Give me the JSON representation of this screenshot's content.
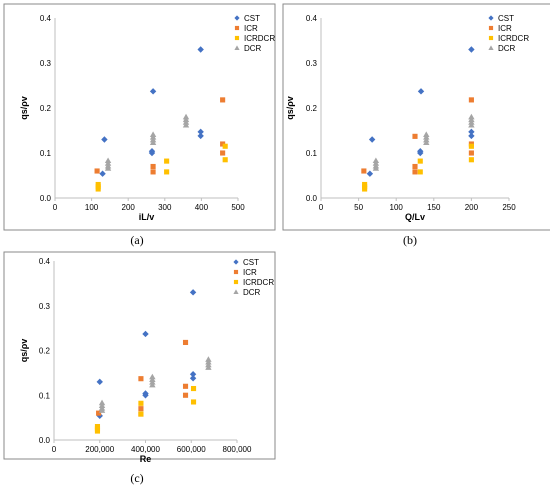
{
  "colors": {
    "CST": "#4472c4",
    "ICR": "#ed7d31",
    "ICRDCR": "#ffc000",
    "DCR": "#a5a5a5"
  },
  "chart_data": [
    {
      "panel": "a",
      "caption": "(a)",
      "type": "scatter",
      "xlabel": "iL/v",
      "ylabel": "qs/ρv",
      "xlim": [
        0,
        500
      ],
      "ylim": [
        0,
        0.4
      ],
      "xticks": [
        "0",
        "100",
        "200",
        "300",
        "400",
        "500"
      ],
      "yticks": [
        "0.0",
        "0.1",
        "0.2",
        "0.3",
        "0.4"
      ],
      "legend_position": "top-right",
      "series": [
        {
          "name": "CST",
          "marker": "diamond",
          "points": [
            [
              135,
              0.13
            ],
            [
              130,
              0.054
            ],
            [
              268,
              0.237
            ],
            [
              265,
              0.104
            ],
            [
              265,
              0.1
            ],
            [
              398,
              0.33
            ],
            [
              398,
              0.147
            ],
            [
              398,
              0.138
            ]
          ]
        },
        {
          "name": "ICR",
          "marker": "square",
          "points": [
            [
              115,
              0.06
            ],
            [
              268,
              0.07
            ],
            [
              268,
              0.058
            ],
            [
              458,
              0.218
            ],
            [
              458,
              0.12
            ],
            [
              458,
              0.1
            ]
          ]
        },
        {
          "name": "ICRDCR",
          "marker": "square",
          "points": [
            [
              118,
              0.03
            ],
            [
              118,
              0.025
            ],
            [
              118,
              0.02
            ],
            [
              305,
              0.082
            ],
            [
              305,
              0.058
            ],
            [
              465,
              0.115
            ],
            [
              465,
              0.085
            ]
          ]
        },
        {
          "name": "DCR",
          "marker": "triangle",
          "points": [
            [
              145,
              0.083
            ],
            [
              145,
              0.077
            ],
            [
              145,
              0.071
            ],
            [
              145,
              0.066
            ],
            [
              268,
              0.141
            ],
            [
              268,
              0.135
            ],
            [
              268,
              0.129
            ],
            [
              268,
              0.123
            ],
            [
              358,
              0.18
            ],
            [
              358,
              0.174
            ],
            [
              358,
              0.168
            ],
            [
              358,
              0.162
            ]
          ]
        }
      ]
    },
    {
      "panel": "b",
      "caption": "(b)",
      "type": "scatter",
      "xlabel": "Q/Lv",
      "ylabel": "qs/ρv",
      "xlim": [
        0,
        250
      ],
      "ylim": [
        0,
        0.4
      ],
      "xticks": [
        "0",
        "50",
        "100",
        "150",
        "200",
        "250"
      ],
      "yticks": [
        "0.0",
        "0.1",
        "0.2",
        "0.3",
        "0.4"
      ],
      "legend_position": "top-right",
      "series": [
        {
          "name": "CST",
          "marker": "diamond",
          "points": [
            [
              68,
              0.13
            ],
            [
              65,
              0.054
            ],
            [
              133,
              0.237
            ],
            [
              132,
              0.104
            ],
            [
              132,
              0.1
            ],
            [
              200,
              0.33
            ],
            [
              200,
              0.147
            ],
            [
              200,
              0.138
            ]
          ]
        },
        {
          "name": "ICR",
          "marker": "square",
          "points": [
            [
              57,
              0.06
            ],
            [
              125,
              0.137
            ],
            [
              125,
              0.07
            ],
            [
              125,
              0.058
            ],
            [
              200,
              0.218
            ],
            [
              200,
              0.12
            ],
            [
              200,
              0.1
            ]
          ]
        },
        {
          "name": "ICRDCR",
          "marker": "square",
          "points": [
            [
              58,
              0.03
            ],
            [
              58,
              0.025
            ],
            [
              58,
              0.02
            ],
            [
              132,
              0.082
            ],
            [
              132,
              0.058
            ],
            [
              200,
              0.115
            ],
            [
              200,
              0.085
            ]
          ]
        },
        {
          "name": "DCR",
          "marker": "triangle",
          "points": [
            [
              73,
              0.083
            ],
            [
              73,
              0.077
            ],
            [
              73,
              0.071
            ],
            [
              73,
              0.066
            ],
            [
              140,
              0.141
            ],
            [
              140,
              0.135
            ],
            [
              140,
              0.129
            ],
            [
              140,
              0.123
            ],
            [
              200,
              0.18
            ],
            [
              200,
              0.174
            ],
            [
              200,
              0.168
            ],
            [
              200,
              0.162
            ]
          ]
        }
      ]
    },
    {
      "panel": "c",
      "caption": "(c)",
      "type": "scatter",
      "xlabel": "Re",
      "ylabel": "qs/ρv",
      "xlim": [
        0,
        800000
      ],
      "ylim": [
        0,
        0.4
      ],
      "xticks": [
        "0",
        "200,000",
        "400,000",
        "600,000",
        "800,000"
      ],
      "yticks": [
        "0.0",
        "0.1",
        "0.2",
        "0.3",
        "0.4"
      ],
      "legend_position": "top-right",
      "series": [
        {
          "name": "CST",
          "marker": "diamond",
          "points": [
            [
              200000,
              0.13
            ],
            [
              200000,
              0.054
            ],
            [
              400000,
              0.237
            ],
            [
              400000,
              0.104
            ],
            [
              400000,
              0.1
            ],
            [
              608000,
              0.33
            ],
            [
              608000,
              0.147
            ],
            [
              608000,
              0.138
            ]
          ]
        },
        {
          "name": "ICR",
          "marker": "square",
          "points": [
            [
              195000,
              0.06
            ],
            [
              380000,
              0.137
            ],
            [
              380000,
              0.07
            ],
            [
              380000,
              0.058
            ],
            [
              575000,
              0.218
            ],
            [
              575000,
              0.12
            ],
            [
              575000,
              0.1
            ]
          ]
        },
        {
          "name": "ICRDCR",
          "marker": "square",
          "points": [
            [
              190000,
              0.03
            ],
            [
              190000,
              0.025
            ],
            [
              190000,
              0.02
            ],
            [
              380000,
              0.082
            ],
            [
              380000,
              0.058
            ],
            [
              610000,
              0.115
            ],
            [
              610000,
              0.085
            ]
          ]
        },
        {
          "name": "DCR",
          "marker": "triangle",
          "points": [
            [
              210000,
              0.083
            ],
            [
              210000,
              0.077
            ],
            [
              210000,
              0.071
            ],
            [
              210000,
              0.066
            ],
            [
              430000,
              0.141
            ],
            [
              430000,
              0.135
            ],
            [
              430000,
              0.129
            ],
            [
              430000,
              0.123
            ],
            [
              675000,
              0.18
            ],
            [
              675000,
              0.174
            ],
            [
              675000,
              0.168
            ],
            [
              675000,
              0.162
            ]
          ]
        }
      ]
    }
  ]
}
